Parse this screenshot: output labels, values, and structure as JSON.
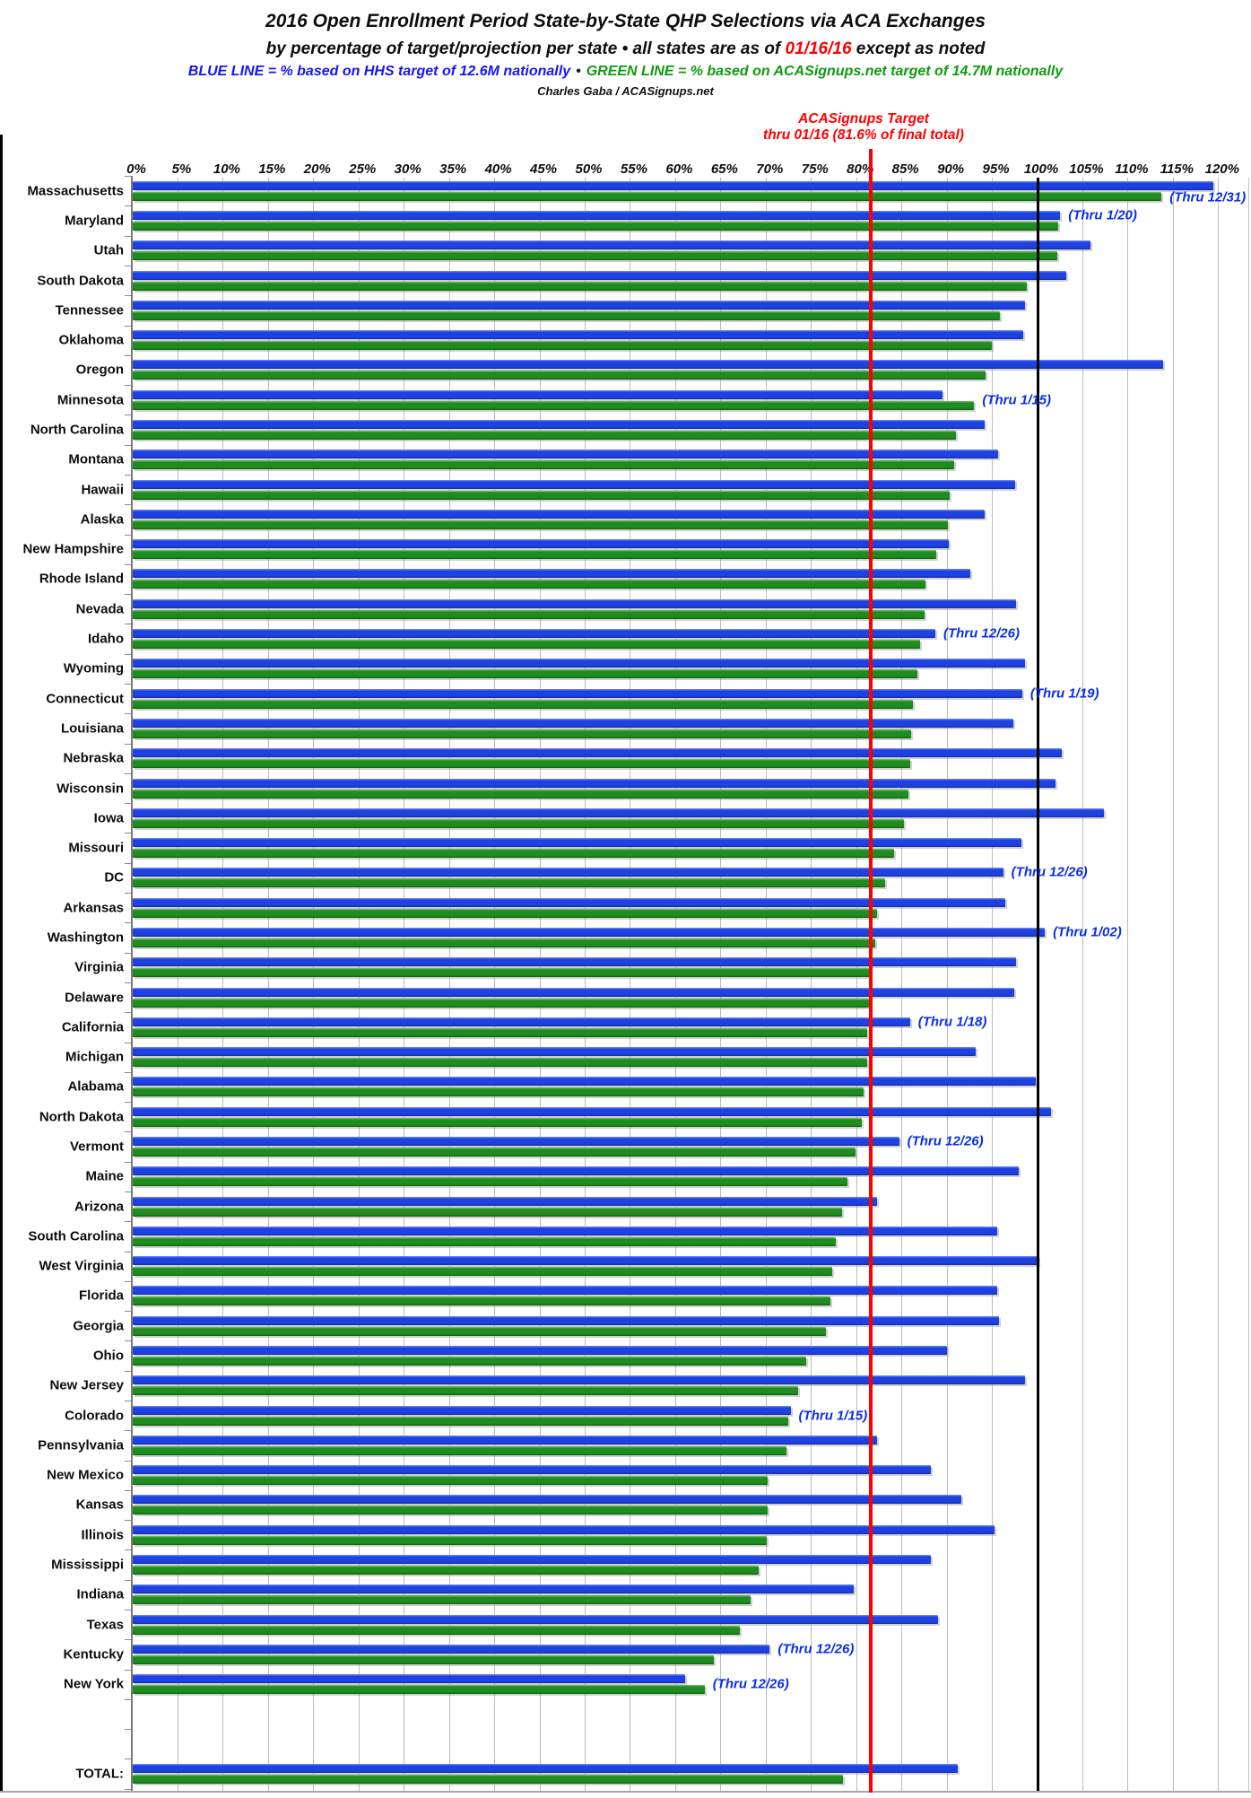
{
  "header": {
    "title": "2016 Open Enrollment Period State-by-State QHP Selections via ACA Exchanges",
    "subtitle_prefix": "by percentage of target/projection per state  •  all states are as of ",
    "subtitle_date": "01/16/16",
    "subtitle_suffix": " except as noted",
    "legend_blue": "BLUE LINE = % based on HHS target of 12.6M nationally",
    "legend_bullet": "•",
    "legend_green": "GREEN LINE = % based on ACASignups.net target of 14.7M nationally",
    "credit": "Charles Gaba / ACASignups.net"
  },
  "target_label": {
    "line1": "ACASignups Target",
    "line2": "thru 01/16 (81.6% of final total)"
  },
  "colors": {
    "bar_blue": "#1e41e2",
    "bar_green": "#1e8c1e",
    "target_line_red": "#ff0000",
    "reference_line_black": "#000000",
    "note_blue": "#0a2ee8",
    "legend_blue_text": "#1414ff",
    "legend_green_text": "#0e9b0e"
  },
  "chart_data": {
    "type": "bar",
    "orientation": "horizontal",
    "xlim": [
      0,
      120
    ],
    "tick_step": 5,
    "tick_suffix": "%",
    "grid": true,
    "target_line_pct": 81.6,
    "reference_line_pct": 100,
    "series": [
      {
        "name": "% based on HHS target of 12.6M nationally",
        "color_key": "bar_blue"
      },
      {
        "name": "% based on ACASignups.net target of 14.7M nationally",
        "color_key": "bar_green"
      }
    ],
    "rows": [
      {
        "state": "Massachusetts",
        "hhs_pct": 119.4,
        "aca_pct": 113.7,
        "note": "(Thru 12/31)",
        "note_row": "green"
      },
      {
        "state": "Maryland",
        "hhs_pct": 102.5,
        "aca_pct": 102.3,
        "note": "(Thru 1/20)",
        "note_row": "blue"
      },
      {
        "state": "Utah",
        "hhs_pct": 105.8,
        "aca_pct": 102.2,
        "note": null,
        "note_row": null
      },
      {
        "state": "South Dakota",
        "hhs_pct": 103.2,
        "aca_pct": 98.8,
        "note": null,
        "note_row": null
      },
      {
        "state": "Tennessee",
        "hhs_pct": 98.6,
        "aca_pct": 95.8,
        "note": null,
        "note_row": null
      },
      {
        "state": "Oklahoma",
        "hhs_pct": 98.4,
        "aca_pct": 94.9,
        "note": null,
        "note_row": null
      },
      {
        "state": "Oregon",
        "hhs_pct": 113.9,
        "aca_pct": 94.2,
        "note": null,
        "note_row": null
      },
      {
        "state": "Minnesota",
        "hhs_pct": 89.5,
        "aca_pct": 93.0,
        "note": "(Thru 1/15)",
        "note_row": "mid"
      },
      {
        "state": "North Carolina",
        "hhs_pct": 94.1,
        "aca_pct": 91.0,
        "note": null,
        "note_row": null
      },
      {
        "state": "Montana",
        "hhs_pct": 95.6,
        "aca_pct": 90.8,
        "note": null,
        "note_row": null
      },
      {
        "state": "Hawaii",
        "hhs_pct": 97.5,
        "aca_pct": 90.3,
        "note": null,
        "note_row": null
      },
      {
        "state": "Alaska",
        "hhs_pct": 94.1,
        "aca_pct": 90.1,
        "note": null,
        "note_row": null
      },
      {
        "state": "New Hampshire",
        "hhs_pct": 90.2,
        "aca_pct": 88.8,
        "note": null,
        "note_row": null
      },
      {
        "state": "Rhode Island",
        "hhs_pct": 92.6,
        "aca_pct": 87.6,
        "note": null,
        "note_row": null
      },
      {
        "state": "Nevada",
        "hhs_pct": 97.6,
        "aca_pct": 87.5,
        "note": null,
        "note_row": null
      },
      {
        "state": "Idaho",
        "hhs_pct": 88.7,
        "aca_pct": 87.0,
        "note": "(Thru 12/26)",
        "note_row": "blue"
      },
      {
        "state": "Wyoming",
        "hhs_pct": 98.6,
        "aca_pct": 86.7,
        "note": null,
        "note_row": null
      },
      {
        "state": "Connecticut",
        "hhs_pct": 98.3,
        "aca_pct": 86.2,
        "note": "(Thru 1/19)",
        "note_row": "blue"
      },
      {
        "state": "Louisiana",
        "hhs_pct": 97.3,
        "aca_pct": 86.0,
        "note": null,
        "note_row": null
      },
      {
        "state": "Nebraska",
        "hhs_pct": 102.7,
        "aca_pct": 85.9,
        "note": null,
        "note_row": null
      },
      {
        "state": "Wisconsin",
        "hhs_pct": 102.0,
        "aca_pct": 85.7,
        "note": null,
        "note_row": null
      },
      {
        "state": "Iowa",
        "hhs_pct": 107.3,
        "aca_pct": 85.2,
        "note": null,
        "note_row": null
      },
      {
        "state": "Missouri",
        "hhs_pct": 98.2,
        "aca_pct": 84.1,
        "note": null,
        "note_row": null
      },
      {
        "state": "DC",
        "hhs_pct": 96.2,
        "aca_pct": 83.1,
        "note": "(Thru 12/26)",
        "note_row": "blue"
      },
      {
        "state": "Arkansas",
        "hhs_pct": 96.4,
        "aca_pct": 82.3,
        "note": null,
        "note_row": null
      },
      {
        "state": "Washington",
        "hhs_pct": 100.8,
        "aca_pct": 82.1,
        "note": "(Thru 1/02)",
        "note_row": "blue"
      },
      {
        "state": "Virginia",
        "hhs_pct": 97.6,
        "aca_pct": 81.5,
        "note": null,
        "note_row": null
      },
      {
        "state": "Delaware",
        "hhs_pct": 97.4,
        "aca_pct": 81.4,
        "note": null,
        "note_row": null
      },
      {
        "state": "California",
        "hhs_pct": 85.9,
        "aca_pct": 81.2,
        "note": "(Thru 1/18)",
        "note_row": "blue"
      },
      {
        "state": "Michigan",
        "hhs_pct": 93.2,
        "aca_pct": 81.2,
        "note": null,
        "note_row": null
      },
      {
        "state": "Alabama",
        "hhs_pct": 99.8,
        "aca_pct": 80.8,
        "note": null,
        "note_row": null
      },
      {
        "state": "North Dakota",
        "hhs_pct": 101.5,
        "aca_pct": 80.6,
        "note": null,
        "note_row": null
      },
      {
        "state": "Vermont",
        "hhs_pct": 84.7,
        "aca_pct": 79.9,
        "note": "(Thru 12/26)",
        "note_row": "blue"
      },
      {
        "state": "Maine",
        "hhs_pct": 97.9,
        "aca_pct": 79.0,
        "note": null,
        "note_row": null
      },
      {
        "state": "Arizona",
        "hhs_pct": 82.3,
        "aca_pct": 78.4,
        "note": null,
        "note_row": null
      },
      {
        "state": "South Carolina",
        "hhs_pct": 95.5,
        "aca_pct": 77.7,
        "note": null,
        "note_row": null
      },
      {
        "state": "West Virginia",
        "hhs_pct": 100.1,
        "aca_pct": 77.3,
        "note": null,
        "note_row": null
      },
      {
        "state": "Florida",
        "hhs_pct": 95.5,
        "aca_pct": 77.1,
        "note": null,
        "note_row": null
      },
      {
        "state": "Georgia",
        "hhs_pct": 95.7,
        "aca_pct": 76.6,
        "note": null,
        "note_row": null
      },
      {
        "state": "Ohio",
        "hhs_pct": 90.0,
        "aca_pct": 74.4,
        "note": null,
        "note_row": null
      },
      {
        "state": "New Jersey",
        "hhs_pct": 98.6,
        "aca_pct": 73.5,
        "note": null,
        "note_row": null
      },
      {
        "state": "Colorado",
        "hhs_pct": 72.7,
        "aca_pct": 72.4,
        "note": "(Thru 1/15)",
        "note_row": "mid"
      },
      {
        "state": "Pennsylvania",
        "hhs_pct": 82.3,
        "aca_pct": 72.2,
        "note": null,
        "note_row": null
      },
      {
        "state": "New Mexico",
        "hhs_pct": 88.2,
        "aca_pct": 70.2,
        "note": null,
        "note_row": null
      },
      {
        "state": "Kansas",
        "hhs_pct": 91.6,
        "aca_pct": 70.2,
        "note": null,
        "note_row": null
      },
      {
        "state": "Illinois",
        "hhs_pct": 95.2,
        "aca_pct": 70.1,
        "note": null,
        "note_row": null
      },
      {
        "state": "Mississippi",
        "hhs_pct": 88.2,
        "aca_pct": 69.2,
        "note": null,
        "note_row": null
      },
      {
        "state": "Indiana",
        "hhs_pct": 79.7,
        "aca_pct": 68.3,
        "note": null,
        "note_row": null
      },
      {
        "state": "Texas",
        "hhs_pct": 89.0,
        "aca_pct": 67.1,
        "note": null,
        "note_row": null
      },
      {
        "state": "Kentucky",
        "hhs_pct": 70.4,
        "aca_pct": 64.2,
        "note": "(Thru 12/26)",
        "note_row": "blue"
      },
      {
        "state": "New York",
        "hhs_pct": 61.0,
        "aca_pct": 63.2,
        "note": "(Thru 12/26)",
        "note_row": "mid"
      }
    ],
    "total": {
      "state": "TOTAL:",
      "hhs_pct": 91.2,
      "aca_pct": 78.5
    }
  }
}
